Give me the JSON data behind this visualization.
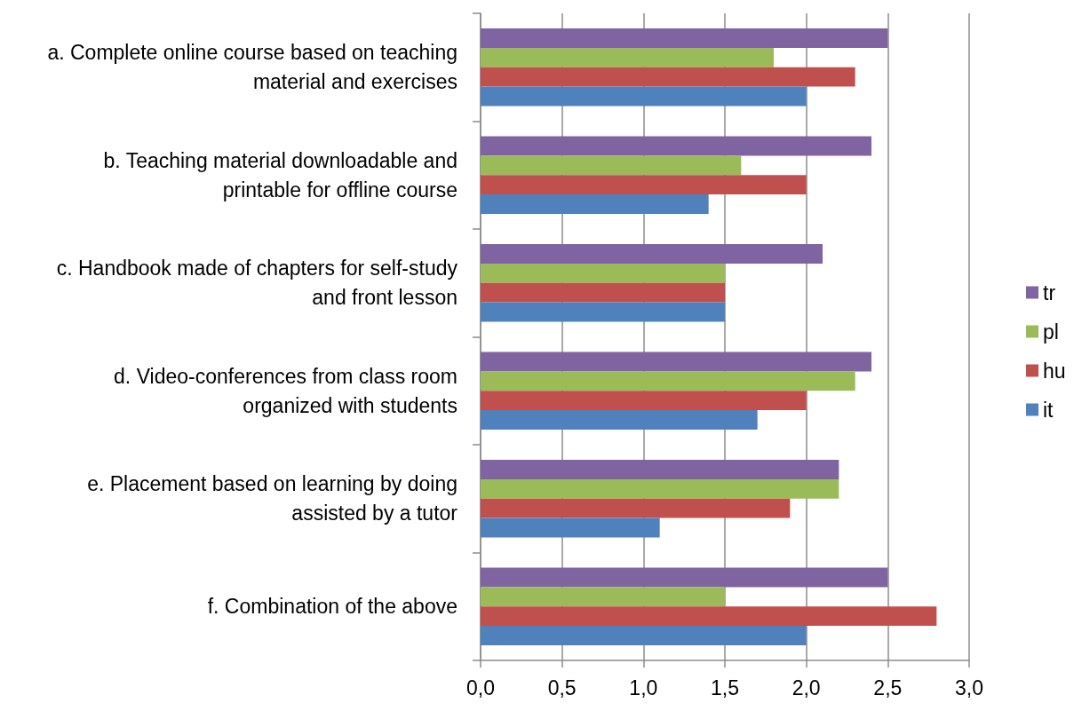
{
  "chart_data": {
    "type": "bar",
    "orientation": "horizontal",
    "categories": [
      "a. Complete online course based on teaching\nmaterial and exercises",
      "b. Teaching material downloadable and\nprintable for offline course",
      "c. Handbook made of chapters for self-study\nand front lesson",
      "d. Video-conferences from class room\norganized with students",
      "e. Placement based on learning by doing\nassisted by a tutor",
      "f. Combination of the above"
    ],
    "series": [
      {
        "name": "tr",
        "color": "#8064a2",
        "values": [
          2.5,
          2.4,
          2.1,
          2.4,
          2.2,
          2.5
        ]
      },
      {
        "name": "pl",
        "color": "#9bbb59",
        "values": [
          1.8,
          1.6,
          1.5,
          2.3,
          2.2,
          1.5
        ]
      },
      {
        "name": "hu",
        "color": "#c0504d",
        "values": [
          2.3,
          2.0,
          1.5,
          2.0,
          1.9,
          2.8
        ]
      },
      {
        "name": "it",
        "color": "#4f81bd",
        "values": [
          2.0,
          1.4,
          1.5,
          1.7,
          1.1,
          2.0
        ]
      }
    ],
    "xlim": [
      0,
      3
    ],
    "xticks": [
      {
        "value": 0,
        "label": "0,0"
      },
      {
        "value": 0.5,
        "label": "0,5"
      },
      {
        "value": 1,
        "label": "1,0"
      },
      {
        "value": 1.5,
        "label": "1,5"
      },
      {
        "value": 2,
        "label": "2,0"
      },
      {
        "value": 2.5,
        "label": "2,5"
      },
      {
        "value": 3,
        "label": "3,0"
      }
    ],
    "grid": "x",
    "legend": "right"
  }
}
